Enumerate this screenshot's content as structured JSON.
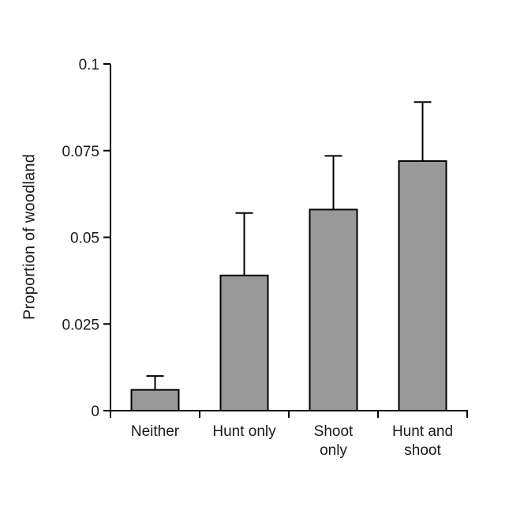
{
  "chart_data": {
    "type": "bar",
    "title": "",
    "categories": [
      "Neither",
      "Hunt only",
      "Shoot\nonly",
      "Hunt and\nshoot"
    ],
    "values": [
      0.006,
      0.039,
      0.058,
      0.072
    ],
    "error_bar_tops": [
      0.01,
      0.057,
      0.0735,
      0.089
    ],
    "error_bars_direction": "upper-only",
    "xlabel": "",
    "ylabel": "Proportion of woodland",
    "ylim": [
      0,
      0.1
    ],
    "yticks": [
      0,
      0.025,
      0.05,
      0.075,
      0.1
    ],
    "ytick_labels": [
      "0",
      "0.025",
      "0.05",
      "0.075",
      "0.1"
    ],
    "grid": false,
    "legend": null,
    "colors": {
      "bar_fill": "#999999",
      "bar_edge": "#000000",
      "axis": "#000000",
      "error_bar": "#000000",
      "background": "#ffffff"
    }
  }
}
